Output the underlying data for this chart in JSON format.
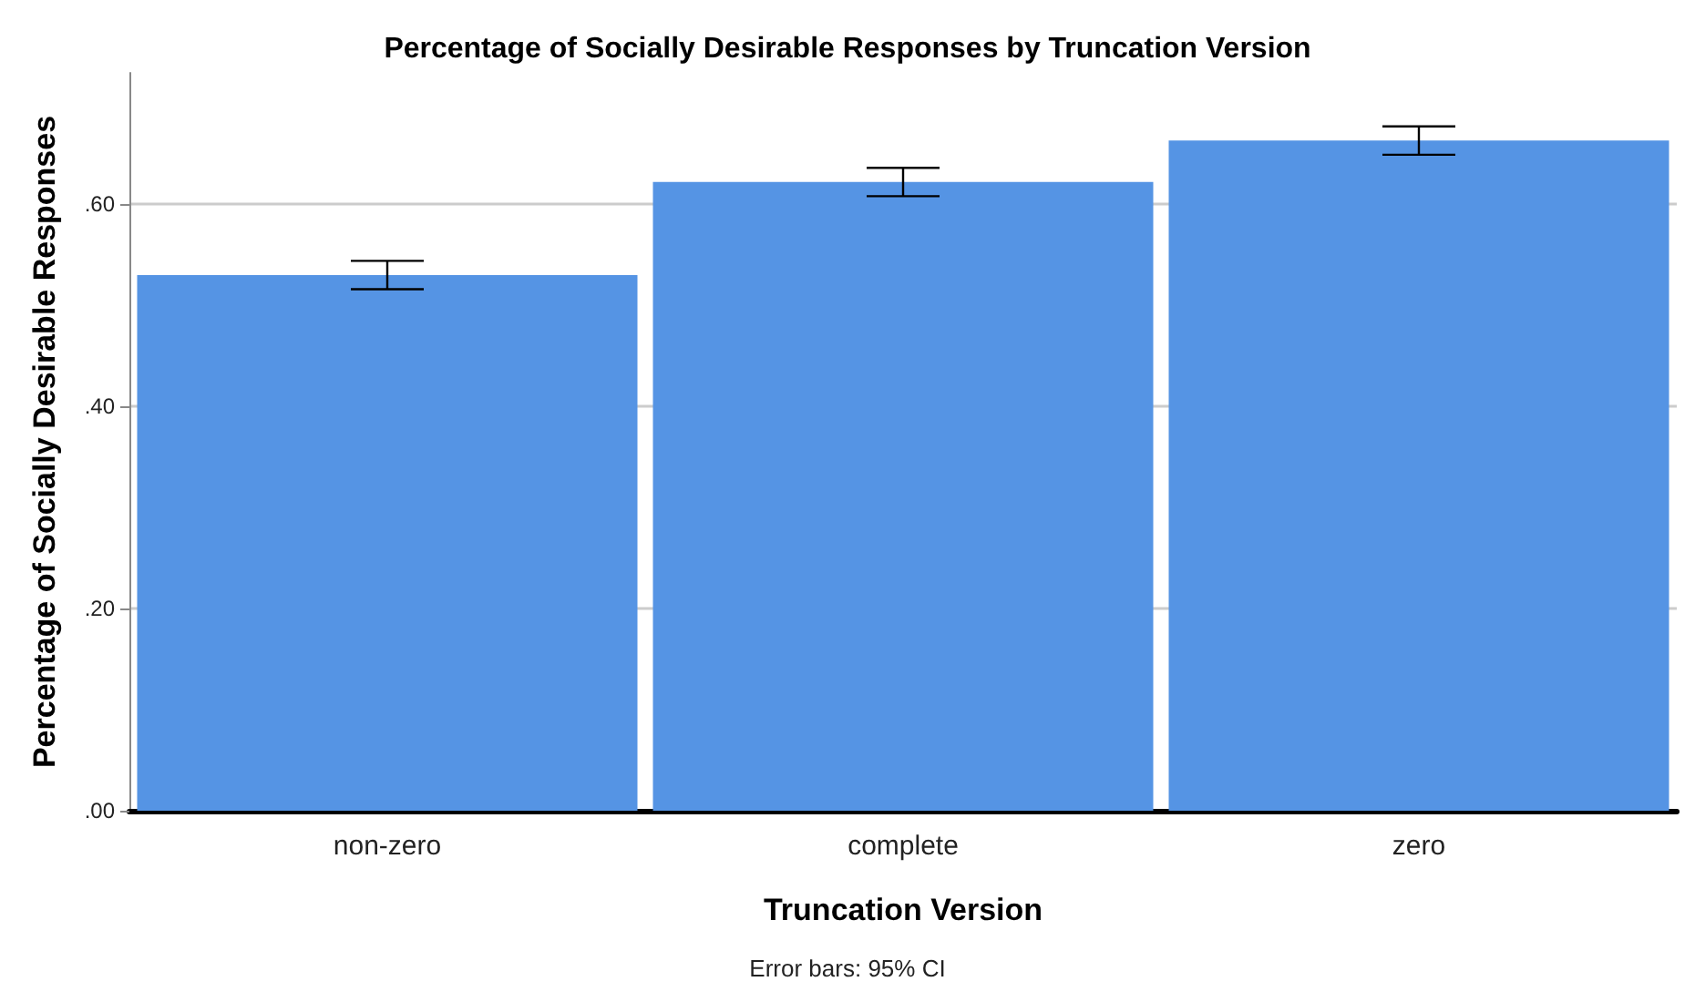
{
  "chart_data": {
    "type": "bar",
    "title": "Percentage of Socially Desirable Responses by Truncation Version",
    "xlabel": "Truncation Version",
    "ylabel": "Percentage of Socially Desirable Responses",
    "categories": [
      "non-zero",
      "complete",
      "zero"
    ],
    "values": [
      0.53,
      0.622,
      0.663
    ],
    "errors": [
      [
        0.516,
        0.544
      ],
      [
        0.608,
        0.636
      ],
      [
        0.649,
        0.677
      ]
    ],
    "color": "#5594e4",
    "ylim": [
      0,
      0.73
    ],
    "yticks": [
      {
        "value": 0,
        "label": ".00"
      },
      {
        "value": 0.2,
        "label": ".20"
      },
      {
        "value": 0.4,
        "label": ".40"
      },
      {
        "value": 0.6,
        "label": ".60"
      }
    ],
    "grid": "y",
    "annotations": [
      "Error bars: 95% CI"
    ]
  }
}
